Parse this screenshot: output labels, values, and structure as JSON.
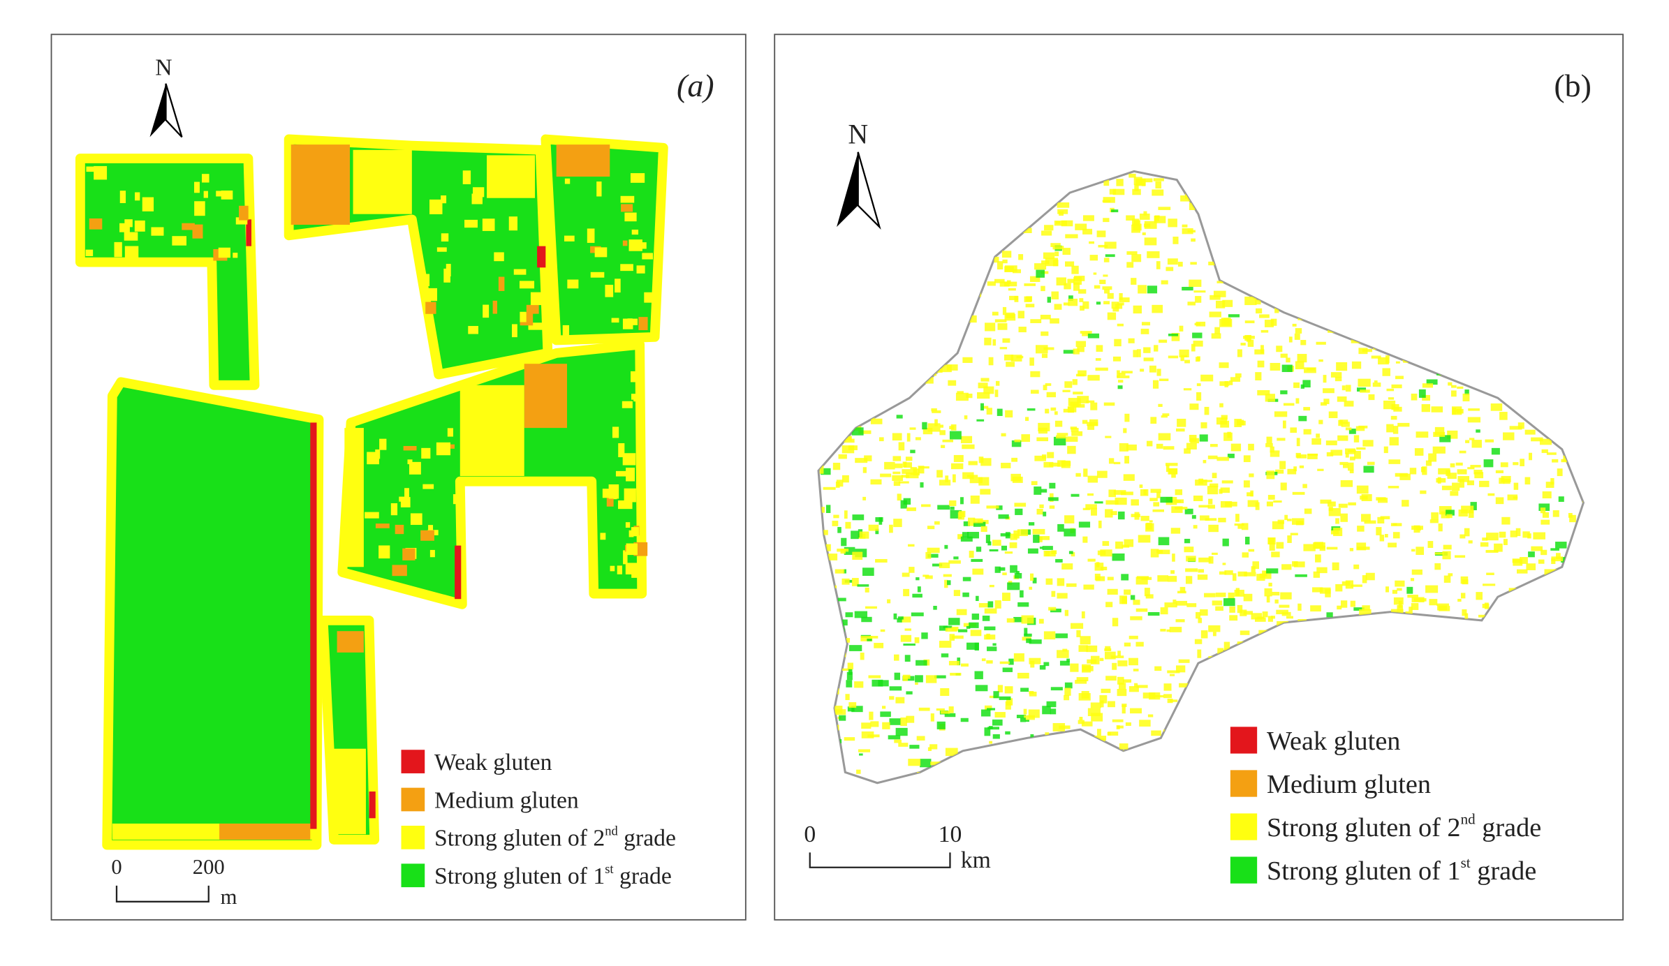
{
  "panels": [
    {
      "label": "(a)",
      "north": "N",
      "scale": {
        "ticks": [
          0,
          200
        ],
        "unit": "m"
      },
      "legend": [
        {
          "name": "Weak gluten",
          "color": "#e3161c"
        },
        {
          "name": "Medium gluten",
          "color": "#f4a012"
        },
        {
          "name": "Strong gluten of 2",
          "sup": "nd",
          "suffix": " grade",
          "color": "#ffff10"
        },
        {
          "name": "Strong gluten of 1",
          "sup": "st",
          "suffix": " grade",
          "color": "#18e018"
        }
      ]
    },
    {
      "label": "(b)",
      "north": "N",
      "scale": {
        "ticks": [
          0,
          10
        ],
        "unit": "km"
      },
      "legend": [
        {
          "name": "Weak gluten",
          "color": "#e3161c"
        },
        {
          "name": "Medium gluten",
          "color": "#f4a012"
        },
        {
          "name": "Strong gluten of 2",
          "sup": "nd",
          "suffix": " grade",
          "color": "#ffff10"
        },
        {
          "name": "Strong gluten of 1",
          "sup": "st",
          "suffix": " grade",
          "color": "#18e018"
        }
      ]
    }
  ]
}
